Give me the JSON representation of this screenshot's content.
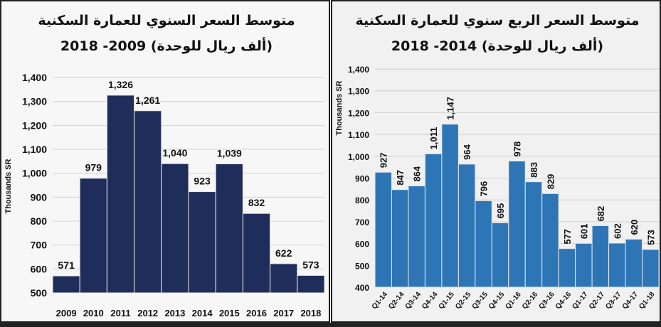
{
  "chart_data": [
    {
      "type": "bar",
      "title": "متوسط السعر السنوي للعمارة السكنية",
      "subtitle": "(ألف ريال للوحدة)  2009- 2018",
      "ylabel": "Thousands SR",
      "xlabel": "",
      "ylim": [
        500,
        1400
      ],
      "yticks": [
        "500",
        "600",
        "700",
        "800",
        "900",
        "1,000",
        "1,100",
        "1,200",
        "1,300",
        "1,400"
      ],
      "grid": true,
      "categories": [
        "2009",
        "2010",
        "2011",
        "2012",
        "2013",
        "2014",
        "2015",
        "2016",
        "2017",
        "2018"
      ],
      "values": [
        571,
        979,
        1326,
        1261,
        1040,
        923,
        1039,
        832,
        622,
        573
      ],
      "labels": [
        "571",
        "979",
        "1,326",
        "1,261",
        "1,040",
        "923",
        "1,039",
        "832",
        "622",
        "573"
      ],
      "color": "#1f2d5a"
    },
    {
      "type": "bar",
      "title": "متوسط السعر الربع سنوي للعمارة السكنية",
      "subtitle": "(ألف ريال للوحدة) 2014- 2018",
      "ylabel": "Thousands SR",
      "xlabel": "",
      "ylim": [
        400,
        1400
      ],
      "yticks": [
        "400",
        "500",
        "600",
        "700",
        "800",
        "900",
        "1,000",
        "1,100",
        "1,200",
        "1,300",
        "1,400"
      ],
      "grid": true,
      "categories": [
        "Q1-14",
        "Q2-14",
        "Q3-14",
        "Q4-14",
        "Q1-15",
        "Q2-15",
        "Q3-15",
        "Q4-15",
        "Q1-16",
        "Q2-16",
        "Q3-16",
        "Q4-16",
        "Q1-17",
        "Q2-17",
        "Q3-17",
        "Q4-17",
        "Q1-18"
      ],
      "values": [
        927,
        847,
        864,
        1011,
        1147,
        964,
        796,
        695,
        978,
        883,
        829,
        577,
        601,
        682,
        602,
        620,
        573
      ],
      "labels": [
        "927",
        "847",
        "864",
        "1,011",
        "1,147",
        "964",
        "796",
        "695",
        "978",
        "883",
        "829",
        "577",
        "601",
        "682",
        "602",
        "620",
        "573"
      ],
      "color": "#2e75b6"
    }
  ]
}
